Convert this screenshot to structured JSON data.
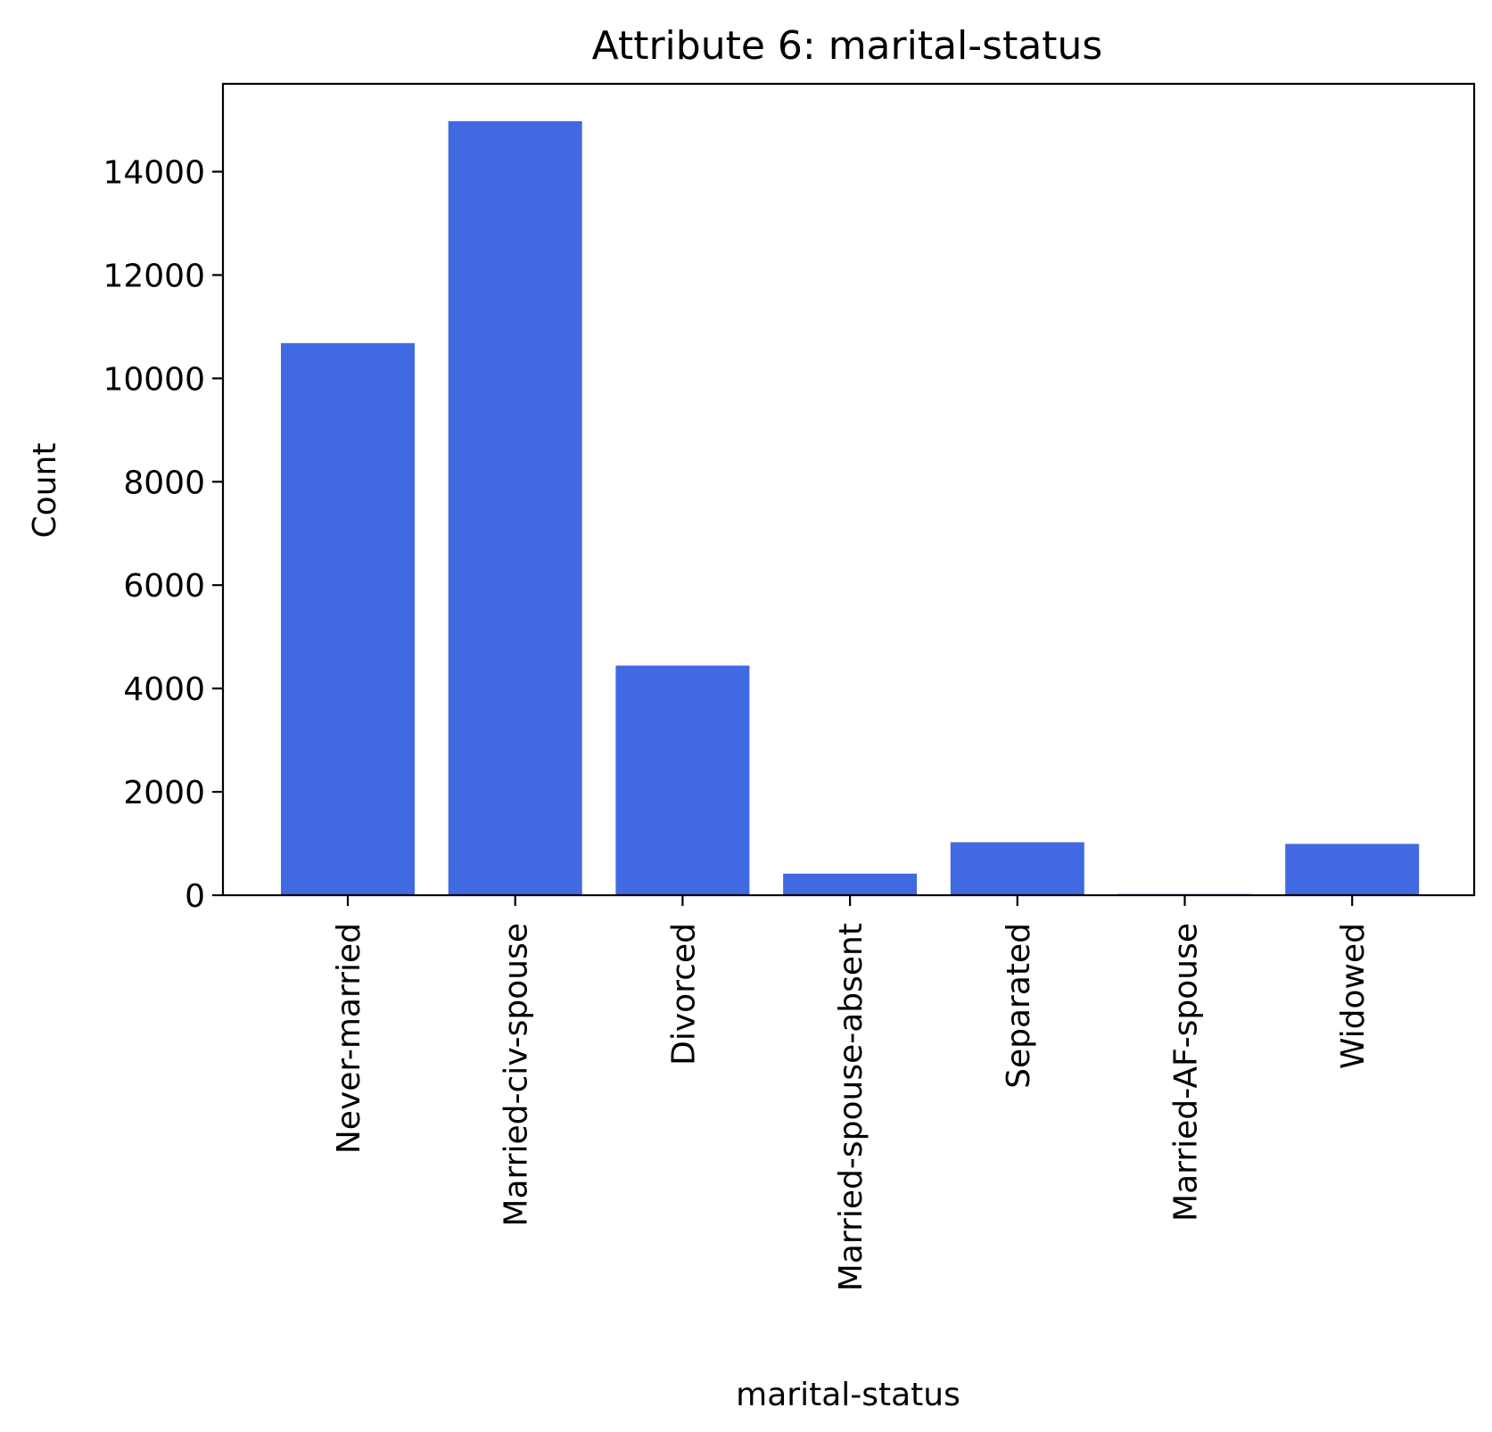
{
  "chart_data": {
    "type": "bar",
    "title": "Attribute 6: marital-status",
    "xlabel": "marital-status",
    "ylabel": "Count",
    "categories": [
      "Never-married",
      "Married-civ-spouse",
      "Divorced",
      "Married-spouse-absent",
      "Separated",
      "Married-AF-spouse",
      "Widowed"
    ],
    "values": [
      10683,
      14976,
      4443,
      418,
      1025,
      23,
      993
    ],
    "ylim": [
      0,
      15700
    ],
    "yticks": [
      0,
      2000,
      4000,
      6000,
      8000,
      10000,
      12000,
      14000
    ],
    "bar_color": "#4169E1",
    "grid": false,
    "legend": "none"
  }
}
